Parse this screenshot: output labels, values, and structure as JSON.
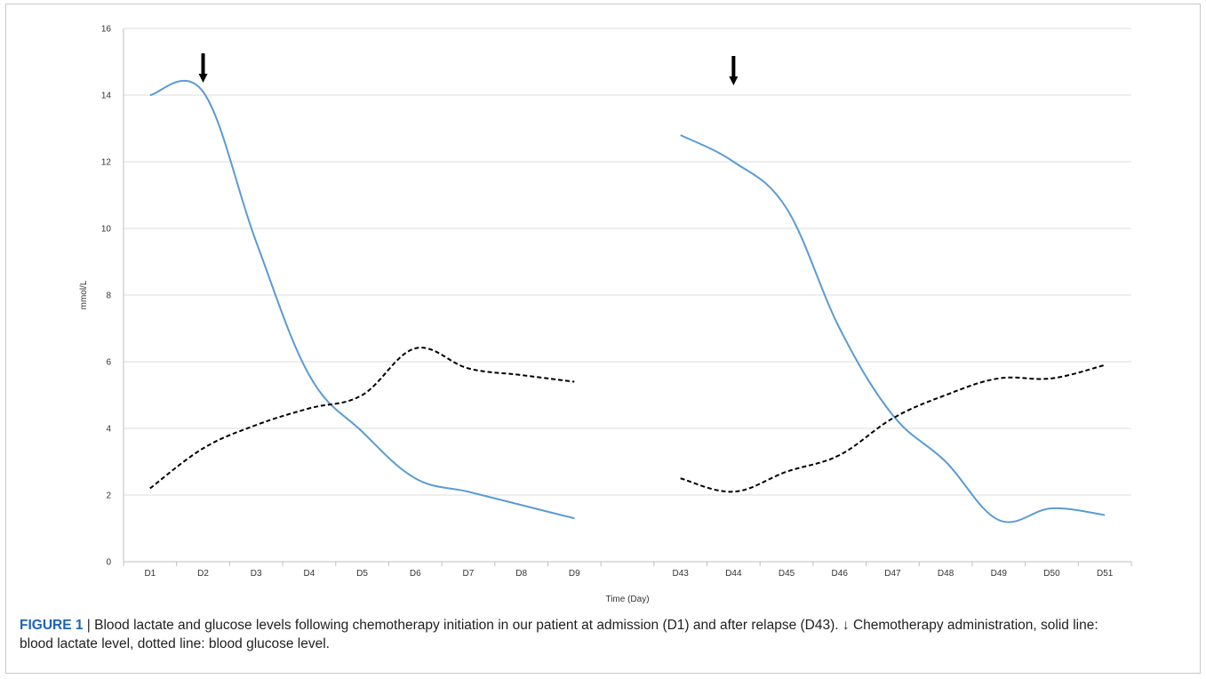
{
  "chart_data": {
    "type": "line",
    "xlabel": "Time (Day)",
    "ylabel": "mmol/L",
    "ylim": [
      0,
      16
    ],
    "yticks": [
      0,
      2,
      4,
      6,
      8,
      10,
      12,
      14,
      16
    ],
    "grid": "horizontal",
    "categories": [
      "D1",
      "D2",
      "D3",
      "D4",
      "D5",
      "D6",
      "D7",
      "D8",
      "D9",
      "",
      "D43",
      "D44",
      "D45",
      "D46",
      "D47",
      "D48",
      "D49",
      "D50",
      "D51"
    ],
    "series": [
      {
        "style": "solid",
        "color": "#5b9bd5",
        "segments": [
          {
            "x": [
              "D1",
              "D2",
              "D3",
              "D4",
              "D5",
              "D6",
              "D7",
              "D8",
              "D9"
            ],
            "y": [
              14.0,
              14.1,
              9.6,
              5.6,
              3.9,
              2.5,
              2.1,
              1.7,
              1.3
            ]
          },
          {
            "x": [
              "D43",
              "D44",
              "D45",
              "D46",
              "D47",
              "D48",
              "D49",
              "D50",
              "D51"
            ],
            "y": [
              12.8,
              12.0,
              10.6,
              7.0,
              4.4,
              3.0,
              1.25,
              1.6,
              1.4
            ]
          }
        ]
      },
      {
        "style": "dotted",
        "color": "#000000",
        "segments": [
          {
            "x": [
              "D1",
              "D2",
              "D3",
              "D4",
              "D5",
              "D6",
              "D7",
              "D8",
              "D9"
            ],
            "y": [
              2.2,
              3.4,
              4.1,
              4.6,
              5.0,
              6.4,
              5.8,
              5.6,
              5.4
            ]
          },
          {
            "x": [
              "D43",
              "D44",
              "D45",
              "D46",
              "D47",
              "D48",
              "D49",
              "D50",
              "D51"
            ],
            "y": [
              2.5,
              2.1,
              2.7,
              3.2,
              4.3,
              5.0,
              5.5,
              5.5,
              5.9
            ]
          }
        ]
      }
    ],
    "annotations": [
      {
        "symbol": "arrow-down",
        "x": "D2"
      },
      {
        "symbol": "arrow-down",
        "x": "D44"
      }
    ]
  },
  "caption": {
    "figure_label": "FIGURE 1",
    "separator": " | ",
    "text": "Blood lactate and glucose levels following chemotherapy initiation in our patient at admission (D1) and after relapse (D43). ↓ Chemotherapy administration, solid line: blood lactate level, dotted line: blood glucose level."
  }
}
